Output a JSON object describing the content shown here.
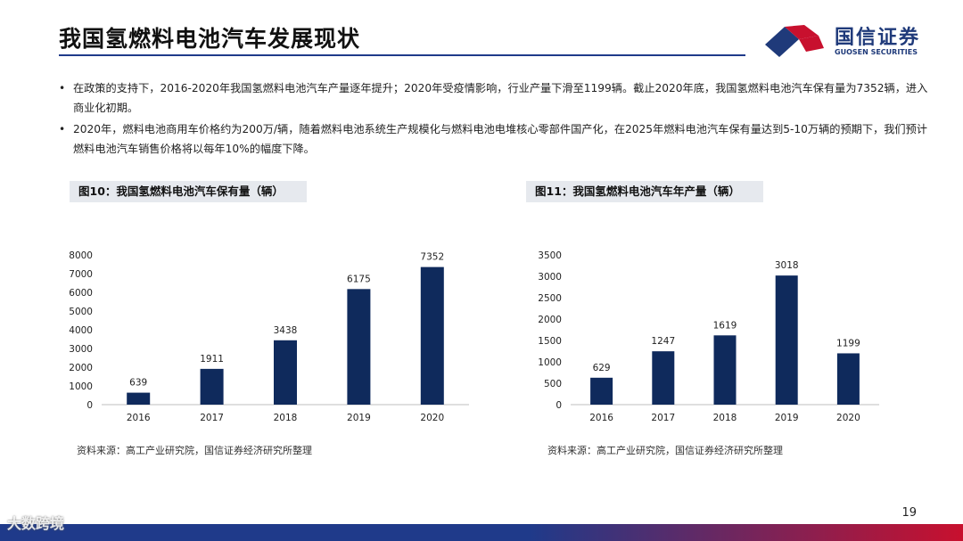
{
  "header": {
    "title": "我国氢燃料电池汽车发展现状",
    "logo_cn": "国信证券",
    "logo_en": "GUOSEN SECURITIES"
  },
  "bullets": [
    "在政策的支持下，2016-2020年我国氢燃料电池汽车产量逐年提升；2020年受疫情影响，行业产量下滑至1199辆。截止2020年底，我国氢燃料电池汽车保有量为7352辆，进入商业化初期。",
    "2020年，燃料电池商用车价格约为200万/辆，随着燃料电池系统生产规模化与燃料电池电堆核心零部件国产化，在2025年燃料电池汽车保有量达到5-10万辆的预期下，我们预计燃料电池汽车销售价格将以每年10%的幅度下降。"
  ],
  "bullet_symbol": "•",
  "figures": [
    {
      "title": "图10：我国氢燃料电池汽车保有量（辆）",
      "source": "资料来源：高工产业研究院，国信证券经济研究所整理"
    },
    {
      "title": "图11：我国氢燃料电池汽车年产量（辆）",
      "source": "资料来源：高工产业研究院，国信证券经济研究所整理"
    }
  ],
  "chart_data": [
    {
      "type": "bar",
      "categories": [
        "2016",
        "2017",
        "2018",
        "2019",
        "2020"
      ],
      "values": [
        639,
        1911,
        3438,
        6175,
        7352
      ],
      "yticks": [
        0,
        1000,
        2000,
        3000,
        4000,
        5000,
        6000,
        7000,
        8000
      ],
      "ylim": [
        0,
        8000
      ],
      "color": "#0f2a5c",
      "grid": false
    },
    {
      "type": "bar",
      "categories": [
        "2016",
        "2017",
        "2018",
        "2019",
        "2020"
      ],
      "values": [
        629,
        1247,
        1619,
        3018,
        1199
      ],
      "yticks": [
        0,
        500,
        1000,
        1500,
        2000,
        2500,
        3000,
        3500
      ],
      "ylim": [
        0,
        3500
      ],
      "color": "#0f2a5c",
      "grid": false
    }
  ],
  "page_number": "19",
  "watermark": "大数跨境"
}
